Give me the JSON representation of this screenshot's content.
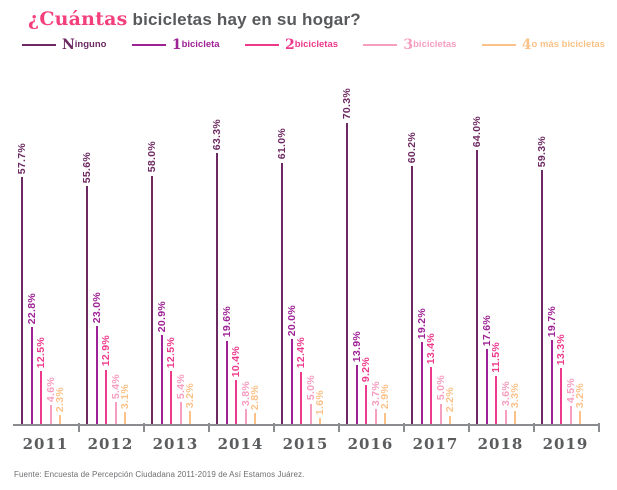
{
  "title": {
    "accent": "¿Cuántas",
    "rest": " bicicletas hay en su hogar?"
  },
  "legend": [
    {
      "initial": "N",
      "rest": "inguno",
      "color": "#6d2a62"
    },
    {
      "initial": "1",
      "rest": " bicicleta",
      "color": "#9e2296"
    },
    {
      "initial": "2",
      "rest": " bicicletas",
      "color": "#ee3a8c"
    },
    {
      "initial": "3",
      "rest": " bicicletas",
      "color": "#f69ec0"
    },
    {
      "initial": "4",
      "rest": " o más bicicletas",
      "color": "#fac288"
    }
  ],
  "chart_data": {
    "type": "bar",
    "subtype": "grouped-lollipop",
    "title": "¿Cuántas bicicletas hay en su hogar?",
    "xlabel": "",
    "ylabel": "",
    "ylim": [
      0,
      75
    ],
    "grid": false,
    "legend_position": "top",
    "value_suffix": "%",
    "categories": [
      "2011",
      "2012",
      "2013",
      "2014",
      "2015",
      "2016",
      "2017",
      "2018",
      "2019"
    ],
    "series": [
      {
        "name": "Ninguno",
        "color": "#6d2a62",
        "values": [
          57.7,
          55.6,
          58.0,
          63.3,
          61.0,
          70.3,
          60.2,
          64.0,
          59.3
        ]
      },
      {
        "name": "1 bicicleta",
        "color": "#9e2296",
        "values": [
          22.8,
          23.0,
          20.9,
          19.6,
          20.0,
          13.9,
          19.2,
          17.6,
          19.7
        ]
      },
      {
        "name": "2 bicicletas",
        "color": "#ee3a8c",
        "values": [
          12.5,
          12.9,
          12.5,
          10.4,
          12.4,
          9.2,
          13.4,
          11.5,
          13.3
        ]
      },
      {
        "name": "3 bicicletas",
        "color": "#f69ec0",
        "values": [
          4.6,
          5.4,
          5.4,
          3.8,
          5.0,
          3.7,
          5.0,
          3.6,
          4.5
        ]
      },
      {
        "name": "4 o más bicicletas",
        "color": "#fac288",
        "values": [
          2.3,
          3.1,
          3.2,
          2.8,
          1.6,
          2.9,
          2.2,
          3.3,
          3.2
        ]
      }
    ]
  },
  "colors": {
    "title_accent": "#f43f7d",
    "title_text": "#58595b",
    "axis": "#8a8c8f",
    "year_label": "#5b5c5e",
    "source_text": "#6d6e71"
  },
  "source": "Fuente: Encuesta de Percepción Ciudadana 2011-2019 de Así Estamos Juárez."
}
